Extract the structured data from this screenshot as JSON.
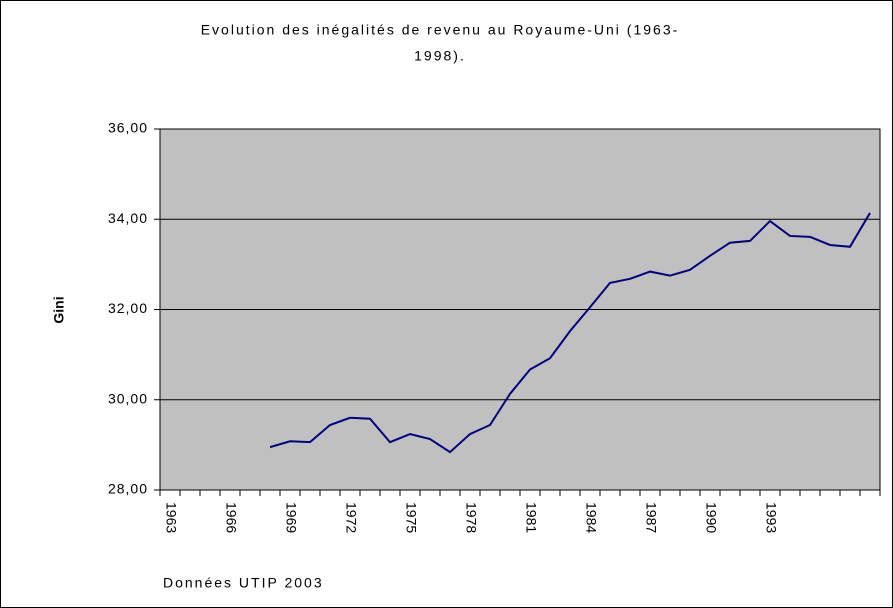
{
  "chart_data": {
    "type": "line",
    "title": [
      "Evolution des inégalités de revenu au Royaume-Uni (1963-",
      "1998)."
    ],
    "y_label": "Gini",
    "source": "Données UTIP 2003",
    "categories": [
      "1963",
      null,
      null,
      "1966",
      null,
      null,
      "1969",
      null,
      null,
      "1972",
      null,
      null,
      "1975",
      null,
      null,
      "1978",
      null,
      null,
      "1981",
      null,
      null,
      "1984",
      null,
      null,
      "1987",
      null,
      null,
      "1990",
      null,
      null,
      "1993",
      null,
      null,
      null,
      null,
      null
    ],
    "series": [
      {
        "name": "Gini",
        "color": "#000080",
        "values": [
          null,
          null,
          null,
          null,
          null,
          28.95,
          29.08,
          29.06,
          29.44,
          29.6,
          29.58,
          29.06,
          29.24,
          29.13,
          28.84,
          29.24,
          29.44,
          30.13,
          30.67,
          30.92,
          31.52,
          32.05,
          32.59,
          32.68,
          32.84,
          32.75,
          32.88,
          33.19,
          33.48,
          33.52,
          33.96,
          33.63,
          33.61,
          33.43,
          33.39,
          34.14
        ]
      }
    ],
    "ylim": [
      28,
      36
    ],
    "yticks": [
      {
        "value": 28,
        "label": "28,00"
      },
      {
        "value": 30,
        "label": "30,00"
      },
      {
        "value": 32,
        "label": "32,00"
      },
      {
        "value": 34,
        "label": "34,00"
      },
      {
        "value": 36,
        "label": "36,00"
      }
    ],
    "grid": true,
    "plot_background": "#c0c0c0"
  }
}
